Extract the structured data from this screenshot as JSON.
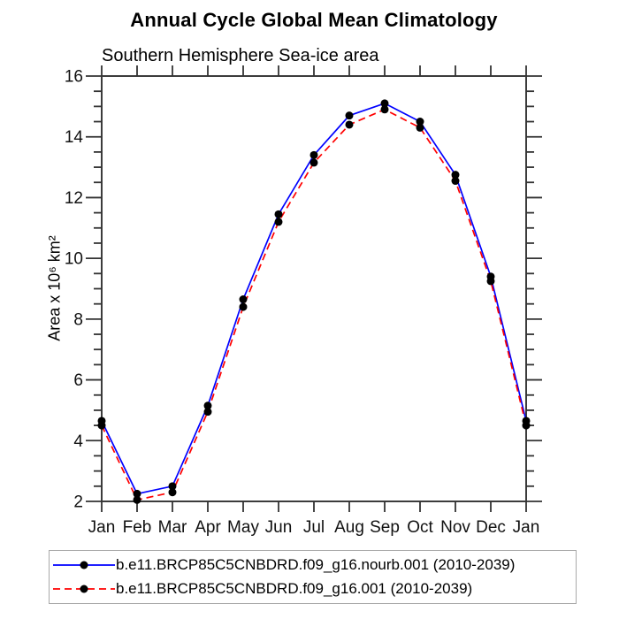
{
  "chart_data": {
    "type": "line",
    "title": "Annual Cycle Global Mean Climatology",
    "subtitle": "Southern Hemisphere Sea-ice area",
    "xlabel": "",
    "ylabel": "Area x 10⁶ km²",
    "categories": [
      "Jan",
      "Feb",
      "Mar",
      "Apr",
      "May",
      "Jun",
      "Jul",
      "Aug",
      "Sep",
      "Oct",
      "Nov",
      "Dec",
      "Jan"
    ],
    "ylim": [
      2,
      16
    ],
    "y_major_ticks": [
      2,
      4,
      6,
      8,
      10,
      12,
      14,
      16
    ],
    "y_minor_step": 0.5,
    "grid": false,
    "legend_position": "bottom",
    "marker_color": "#000000",
    "axis_color": "#3c3c3c",
    "series": [
      {
        "name": "b.e11.BRCP85C5CNBDRD.f09_g16.nourb.001 (2010-2039)",
        "color": "#0000ff",
        "line_style": "solid",
        "marker": "black-dot",
        "values": [
          4.65,
          2.25,
          2.5,
          5.15,
          8.65,
          11.45,
          13.4,
          14.7,
          15.1,
          14.5,
          12.75,
          9.4,
          4.65
        ]
      },
      {
        "name": "b.e11.BRCP85C5CNBDRD.f09_g16.001 (2010-2039)",
        "color": "#ff0000",
        "line_style": "dashed",
        "marker": "black-dot",
        "values": [
          4.5,
          2.05,
          2.3,
          4.95,
          8.4,
          11.2,
          13.15,
          14.4,
          14.9,
          14.3,
          12.55,
          9.25,
          4.5
        ]
      }
    ]
  }
}
